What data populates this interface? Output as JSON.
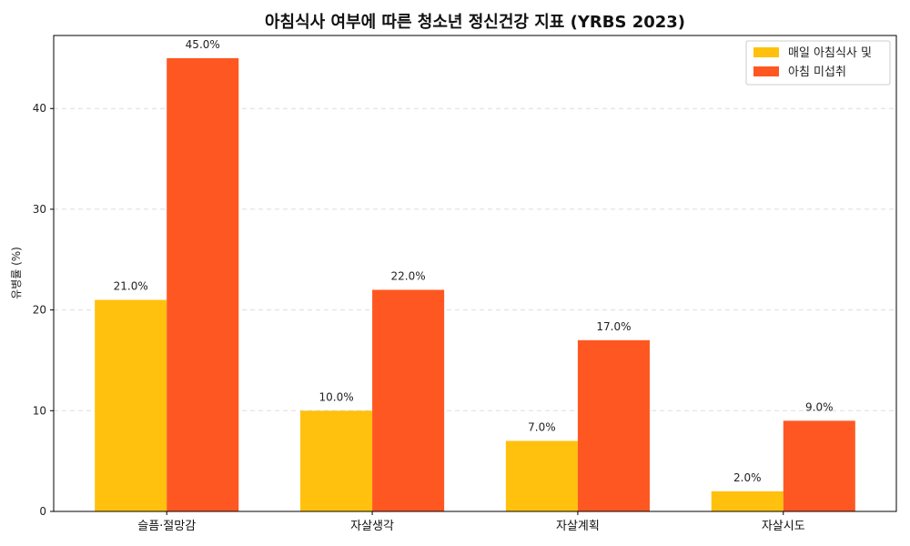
{
  "chart_data": {
    "type": "bar",
    "title": "아침식사 여부에 따른 청소년 정신건강 지표 (YRBS 2023)",
    "xlabel": "",
    "ylabel": "유병률 (%)",
    "categories": [
      "슬픔·절망감",
      "자살생각",
      "자살계획",
      "자살시도"
    ],
    "series": [
      {
        "name": "매일 아침식사 및",
        "color": "#FFC10E",
        "values": [
          21.0,
          10.0,
          7.0,
          2.0
        ]
      },
      {
        "name": "아침 미섭취",
        "color": "#FF5722",
        "values": [
          45.0,
          22.0,
          17.0,
          9.0
        ]
      }
    ],
    "ylim": [
      0,
      47.25
    ],
    "yticks": [
      0,
      10,
      20,
      30,
      40
    ],
    "value_label_suffix": "%",
    "grid": "y-dashed",
    "legend_position": "top-right"
  }
}
